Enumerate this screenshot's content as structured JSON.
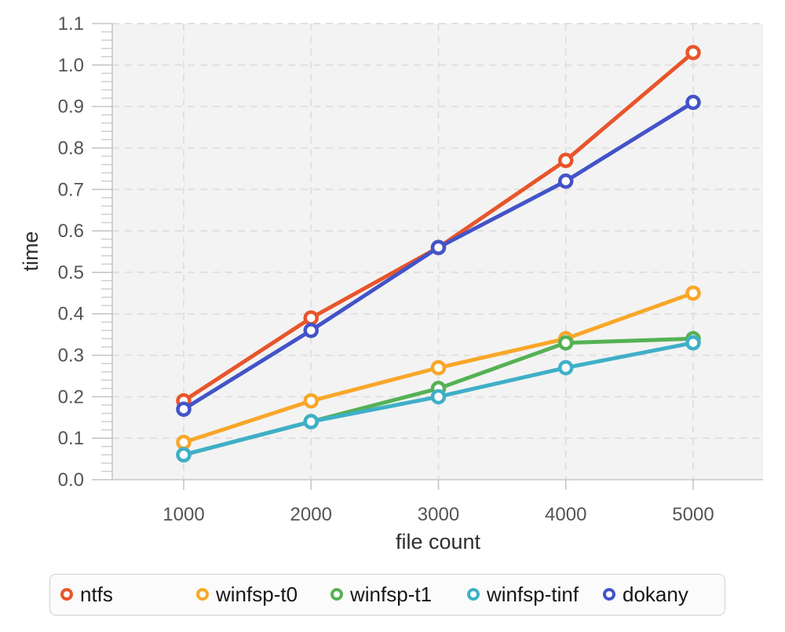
{
  "chart_data": {
    "type": "line",
    "xlabel": "file count",
    "ylabel": "time",
    "x": [
      1000,
      2000,
      3000,
      4000,
      5000
    ],
    "x_tick_labels": [
      "1000",
      "2000",
      "3000",
      "4000",
      "5000"
    ],
    "y_tick_labels": [
      "0.0",
      "0.1",
      "0.2",
      "0.3",
      "0.4",
      "0.5",
      "0.6",
      "0.7",
      "0.8",
      "0.9",
      "1.0",
      "1.1"
    ],
    "ylim": [
      0,
      1.1
    ],
    "y_minor_step": 0.02,
    "grid": true,
    "legend_position": "bottom",
    "series": [
      {
        "name": "ntfs",
        "color": "#E8552B",
        "values": [
          0.19,
          0.39,
          0.56,
          0.77,
          1.03
        ]
      },
      {
        "name": "winfsp-t0",
        "color": "#F8A729",
        "values": [
          0.09,
          0.19,
          0.27,
          0.34,
          0.45
        ]
      },
      {
        "name": "winfsp-t1",
        "color": "#55B155",
        "values": [
          0.06,
          0.14,
          0.22,
          0.33,
          0.34
        ]
      },
      {
        "name": "winfsp-tinf",
        "color": "#3FAFC8",
        "values": [
          0.06,
          0.14,
          0.2,
          0.27,
          0.33
        ]
      },
      {
        "name": "dokany",
        "color": "#4353C8",
        "values": [
          0.17,
          0.36,
          0.56,
          0.72,
          0.91
        ]
      }
    ]
  },
  "legend": {
    "items": [
      {
        "label": "ntfs",
        "color": "#E8552B"
      },
      {
        "label": "winfsp-t0",
        "color": "#F8A729"
      },
      {
        "label": "winfsp-t1",
        "color": "#55B155"
      },
      {
        "label": "winfsp-tinf",
        "color": "#3FAFC8"
      },
      {
        "label": "dokany",
        "color": "#4353C8"
      }
    ]
  },
  "style": {
    "plot_bg": "#F3F3F3",
    "grid_color": "#E0E0E0",
    "axis_color": "#C6C6C6",
    "minor_tick_color": "#CDCDCD",
    "marker_fill": "#FFFFFF"
  }
}
